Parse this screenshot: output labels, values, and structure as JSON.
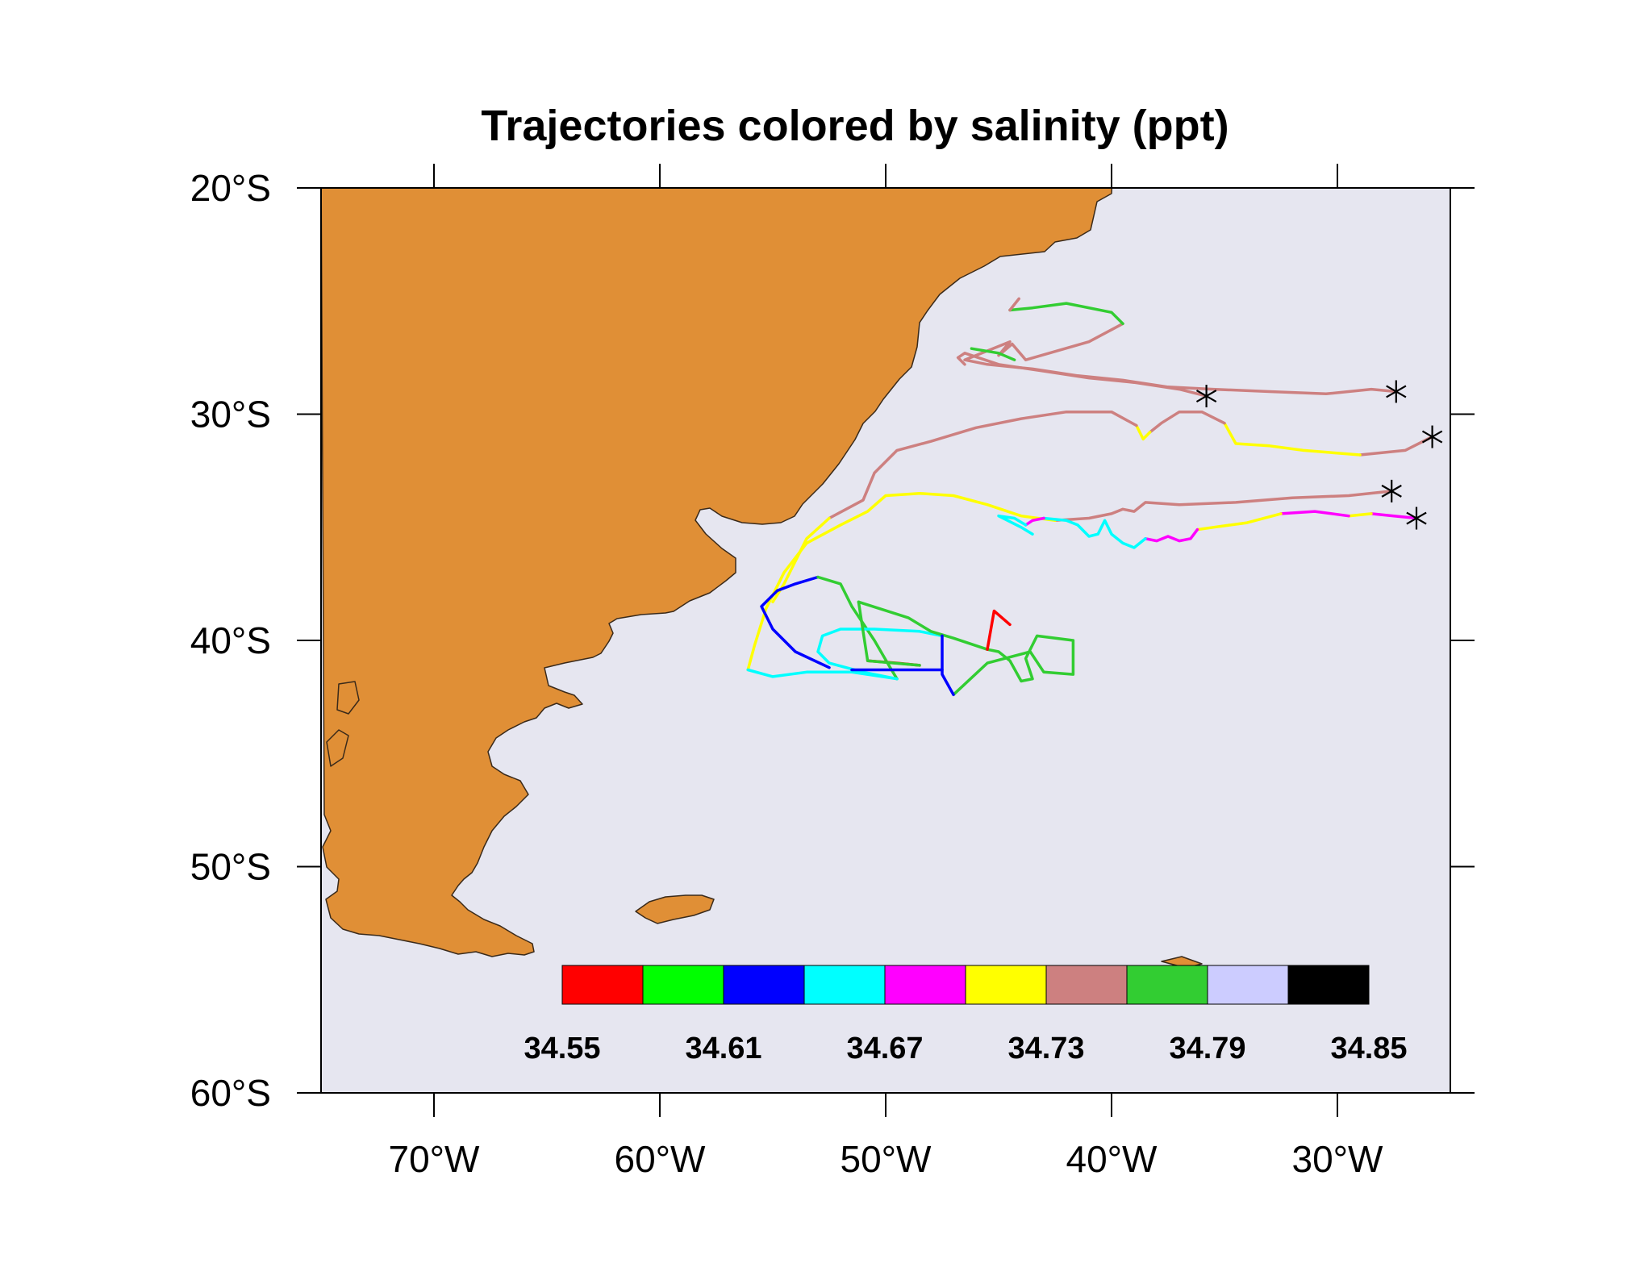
{
  "title": "Trajectories colored by salinity (ppt)",
  "colors": {
    "ocean": "#e6e6f0",
    "land": "#e08f36",
    "coast": "#3a2a1a",
    "frame": "#000000"
  },
  "map": {
    "lon_range": [
      -75,
      -25
    ],
    "lat_range": [
      -60,
      -20
    ],
    "lon_ticks": [
      {
        "value": -70,
        "label": "70°W"
      },
      {
        "value": -60,
        "label": "60°W"
      },
      {
        "value": -50,
        "label": "50°W"
      },
      {
        "value": -40,
        "label": "40°W"
      },
      {
        "value": -30,
        "label": "30°W"
      }
    ],
    "lat_ticks": [
      {
        "value": -20,
        "label": "20°S"
      },
      {
        "value": -30,
        "label": "30°S"
      },
      {
        "value": -40,
        "label": "40°S"
      },
      {
        "value": -50,
        "label": "50°S"
      },
      {
        "value": -60,
        "label": "60°S"
      }
    ]
  },
  "colorbar": {
    "colors": [
      "#ff0000",
      "#00ff00",
      "#0000ff",
      "#00ffff",
      "#ff00ff",
      "#ffff00",
      "#cd8080",
      "#32cd32",
      "#ccccff",
      "#000000"
    ],
    "labels": [
      "34.55",
      "34.61",
      "34.67",
      "34.73",
      "34.79",
      "34.85"
    ]
  },
  "trajectories": [
    {
      "start_marker": [
        -27.4,
        -29.0
      ],
      "segments": [
        {
          "color": "#cd8080",
          "points": [
            [
              -27.4,
              -29.0
            ],
            [
              -28.5,
              -28.9
            ],
            [
              -30.5,
              -29.1
            ],
            [
              -33.0,
              -29.0
            ],
            [
              -35.5,
              -28.9
            ],
            [
              -37.5,
              -28.8
            ],
            [
              -39.5,
              -28.5
            ],
            [
              -41.5,
              -28.3
            ],
            [
              -43.5,
              -28.0
            ],
            [
              -45.5,
              -27.8
            ],
            [
              -46.5,
              -27.6
            ],
            [
              -45.5,
              -27.2
            ],
            [
              -44.5,
              -26.8
            ],
            [
              -45.0,
              -27.4
            ],
            [
              -44.4,
              -26.9
            ],
            [
              -43.8,
              -27.6
            ],
            [
              -41.0,
              -26.8
            ],
            [
              -39.5,
              -26.0
            ]
          ]
        },
        {
          "color": "#32cd32",
          "points": [
            [
              -39.5,
              -26.0
            ],
            [
              -40.0,
              -25.5
            ],
            [
              -42.0,
              -25.1
            ],
            [
              -43.5,
              -25.3
            ],
            [
              -44.5,
              -25.4
            ]
          ]
        },
        {
          "color": "#cd8080",
          "points": [
            [
              -44.5,
              -25.4
            ],
            [
              -44.1,
              -24.9
            ]
          ]
        }
      ]
    },
    {
      "start_marker": [
        -25.8,
        -31.0
      ],
      "segments": [
        {
          "color": "#cd8080",
          "points": [
            [
              -25.8,
              -31.0
            ],
            [
              -27.0,
              -31.6
            ],
            [
              -29.0,
              -31.8
            ]
          ]
        },
        {
          "color": "#ffff00",
          "points": [
            [
              -29.0,
              -31.8
            ],
            [
              -31.5,
              -31.6
            ],
            [
              -33.0,
              -31.4
            ],
            [
              -34.5,
              -31.3
            ],
            [
              -35.0,
              -30.4
            ]
          ]
        },
        {
          "color": "#cd8080",
          "points": [
            [
              -35.0,
              -30.4
            ],
            [
              -36.0,
              -29.9
            ],
            [
              -37.0,
              -29.9
            ],
            [
              -37.8,
              -30.4
            ],
            [
              -38.3,
              -30.8
            ]
          ]
        },
        {
          "color": "#ffff00",
          "points": [
            [
              -38.3,
              -30.8
            ],
            [
              -38.6,
              -31.1
            ],
            [
              -38.9,
              -30.5
            ]
          ]
        },
        {
          "color": "#cd8080",
          "points": [
            [
              -38.9,
              -30.5
            ],
            [
              -40.0,
              -29.9
            ],
            [
              -42.0,
              -29.9
            ],
            [
              -44.0,
              -30.2
            ],
            [
              -46.0,
              -30.6
            ],
            [
              -48.0,
              -31.2
            ],
            [
              -49.5,
              -31.6
            ],
            [
              -50.5,
              -32.6
            ],
            [
              -51.0,
              -33.8
            ],
            [
              -52.5,
              -34.6
            ]
          ]
        },
        {
          "color": "#ffff00",
          "points": [
            [
              -52.5,
              -34.6
            ],
            [
              -53.5,
              -35.5
            ],
            [
              -54.0,
              -36.5
            ],
            [
              -54.5,
              -37.5
            ],
            [
              -55.0,
              -38.3
            ]
          ]
        }
      ]
    },
    {
      "start_marker": [
        -27.6,
        -33.4
      ],
      "segments": [
        {
          "color": "#cd8080",
          "points": [
            [
              -27.6,
              -33.4
            ],
            [
              -29.5,
              -33.6
            ],
            [
              -32.0,
              -33.7
            ],
            [
              -34.5,
              -33.9
            ],
            [
              -37.0,
              -34.0
            ],
            [
              -38.5,
              -33.9
            ],
            [
              -39.0,
              -34.3
            ],
            [
              -39.5,
              -34.2
            ],
            [
              -40.0,
              -34.4
            ],
            [
              -41.0,
              -34.6
            ],
            [
              -42.5,
              -34.7
            ]
          ]
        },
        {
          "color": "#ffff00",
          "points": [
            [
              -42.5,
              -34.7
            ],
            [
              -44.0,
              -34.5
            ],
            [
              -45.5,
              -34.0
            ],
            [
              -47.0,
              -33.6
            ],
            [
              -48.5,
              -33.5
            ],
            [
              -50.0,
              -33.6
            ],
            [
              -50.8,
              -34.3
            ],
            [
              -52.0,
              -34.9
            ],
            [
              -53.5,
              -35.7
            ],
            [
              -54.5,
              -37.0
            ],
            [
              -55.3,
              -38.6
            ],
            [
              -55.8,
              -40.2
            ],
            [
              -56.1,
              -41.3
            ]
          ]
        },
        {
          "color": "#00ffff",
          "points": [
            [
              -56.1,
              -41.3
            ],
            [
              -55.0,
              -41.6
            ],
            [
              -53.5,
              -41.4
            ],
            [
              -51.5,
              -41.4
            ],
            [
              -49.5,
              -41.7
            ]
          ]
        }
      ]
    },
    {
      "start_marker": [
        -26.5,
        -34.6
      ],
      "segments": [
        {
          "color": "#ff00ff",
          "points": [
            [
              -26.5,
              -34.6
            ],
            [
              -27.5,
              -34.5
            ],
            [
              -28.5,
              -34.4
            ]
          ]
        },
        {
          "color": "#ffff00",
          "points": [
            [
              -28.5,
              -34.4
            ],
            [
              -29.5,
              -34.5
            ]
          ]
        },
        {
          "color": "#ff00ff",
          "points": [
            [
              -29.5,
              -34.5
            ],
            [
              -31.0,
              -34.3
            ],
            [
              -32.5,
              -34.4
            ]
          ]
        },
        {
          "color": "#ffff00",
          "points": [
            [
              -32.5,
              -34.4
            ],
            [
              -34.0,
              -34.8
            ],
            [
              -35.5,
              -35.0
            ],
            [
              -36.2,
              -35.1
            ]
          ]
        },
        {
          "color": "#ff00ff",
          "points": [
            [
              -36.2,
              -35.1
            ],
            [
              -36.5,
              -35.5
            ],
            [
              -37.0,
              -35.6
            ],
            [
              -37.5,
              -35.4
            ],
            [
              -38.0,
              -35.6
            ],
            [
              -38.5,
              -35.5
            ]
          ]
        },
        {
          "color": "#00ffff",
          "points": [
            [
              -38.5,
              -35.5
            ],
            [
              -39.0,
              -35.9
            ],
            [
              -39.5,
              -35.7
            ],
            [
              -40.0,
              -35.3
            ],
            [
              -40.3,
              -34.7
            ],
            [
              -40.6,
              -35.3
            ],
            [
              -41.0,
              -35.4
            ],
            [
              -41.5,
              -34.9
            ],
            [
              -42.0,
              -34.7
            ],
            [
              -43.0,
              -34.6
            ]
          ]
        },
        {
          "color": "#ff00ff",
          "points": [
            [
              -43.0,
              -34.6
            ],
            [
              -43.5,
              -34.7
            ],
            [
              -43.8,
              -34.9
            ]
          ]
        },
        {
          "color": "#00ffff",
          "points": [
            [
              -43.8,
              -34.9
            ],
            [
              -44.3,
              -34.6
            ],
            [
              -45.0,
              -34.5
            ],
            [
              -44.0,
              -35.0
            ],
            [
              -43.5,
              -35.3
            ]
          ]
        }
      ]
    },
    {
      "start_marker": null,
      "segments": [
        {
          "color": "#32cd32",
          "points": [
            [
              -44.3,
              -27.6
            ],
            [
              -45.0,
              -27.3
            ],
            [
              -46.2,
              -27.1
            ]
          ]
        },
        {
          "color": "#0000ff",
          "points": [
            [
              -52.5,
              -41.2
            ],
            [
              -54.0,
              -40.5
            ],
            [
              -55.0,
              -39.5
            ],
            [
              -55.5,
              -38.5
            ],
            [
              -54.8,
              -37.8
            ],
            [
              -54.0,
              -37.5
            ],
            [
              -53.0,
              -37.2
            ]
          ]
        },
        {
          "color": "#32cd32",
          "points": [
            [
              -53.0,
              -37.2
            ],
            [
              -52.0,
              -37.5
            ],
            [
              -51.5,
              -38.5
            ],
            [
              -50.5,
              -40.0
            ],
            [
              -49.8,
              -41.2
            ],
            [
              -49.5,
              -41.7
            ]
          ]
        },
        {
          "color": "#00ffff",
          "points": [
            [
              -49.5,
              -41.7
            ],
            [
              -51.0,
              -41.4
            ],
            [
              -52.5,
              -41.0
            ],
            [
              -53.0,
              -40.5
            ],
            [
              -52.8,
              -39.8
            ],
            [
              -52.0,
              -39.5
            ],
            [
              -50.5,
              -39.5
            ],
            [
              -48.5,
              -39.6
            ],
            [
              -47.5,
              -39.8
            ]
          ]
        },
        {
          "color": "#ff0000",
          "points": [
            [
              -50.8,
              -40.9
            ],
            [
              -49.5,
              -41.0
            ],
            [
              -48.5,
              -41.1
            ]
          ]
        },
        {
          "color": "#32cd32",
          "points": [
            [
              -48.5,
              -41.1
            ],
            [
              -50.8,
              -40.9
            ],
            [
              -51.0,
              -39.6
            ],
            [
              -51.2,
              -38.3
            ]
          ]
        },
        {
          "color": "#32cd32",
          "points": [
            [
              -51.2,
              -38.3
            ],
            [
              -49.0,
              -39.0
            ],
            [
              -48.0,
              -39.6
            ],
            [
              -47.0,
              -39.9
            ],
            [
              -45.5,
              -40.4
            ],
            [
              -45.0,
              -40.5
            ],
            [
              -44.5,
              -40.9
            ],
            [
              -44.0,
              -41.8
            ],
            [
              -43.5,
              -41.7
            ],
            [
              -43.8,
              -40.8
            ],
            [
              -43.3,
              -39.8
            ],
            [
              -41.7,
              -40.0
            ],
            [
              -41.7,
              -41.5
            ],
            [
              -43.0,
              -41.4
            ],
            [
              -43.6,
              -40.5
            ],
            [
              -45.5,
              -41.0
            ],
            [
              -47.0,
              -42.4
            ]
          ]
        },
        {
          "color": "#0000ff",
          "points": [
            [
              -47.0,
              -42.4
            ],
            [
              -47.5,
              -41.5
            ],
            [
              -47.5,
              -39.8
            ]
          ]
        },
        {
          "color": "#0000ff",
          "points": [
            [
              -51.5,
              -41.3
            ],
            [
              -49.0,
              -41.3
            ],
            [
              -47.5,
              -41.3
            ]
          ]
        },
        {
          "color": "#ff0000",
          "points": [
            [
              -45.5,
              -40.4
            ],
            [
              -45.2,
              -38.7
            ],
            [
              -44.5,
              -39.3
            ]
          ]
        }
      ]
    },
    {
      "start_marker": [
        -35.8,
        -29.2
      ],
      "segments": [
        {
          "color": "#cd8080",
          "points": [
            [
              -35.8,
              -29.2
            ],
            [
              -37.0,
              -28.9
            ],
            [
              -39.0,
              -28.6
            ],
            [
              -41.0,
              -28.4
            ],
            [
              -43.0,
              -28.1
            ],
            [
              -45.0,
              -27.8
            ],
            [
              -46.5,
              -27.3
            ],
            [
              -46.8,
              -27.5
            ],
            [
              -46.5,
              -27.8
            ]
          ]
        }
      ]
    }
  ]
}
